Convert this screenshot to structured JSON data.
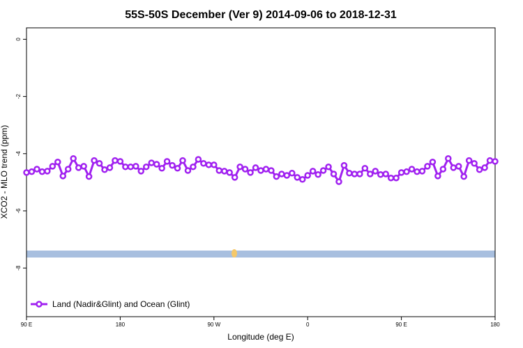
{
  "chart_data": {
    "type": "line",
    "title": "55S-50S December (Ver 9)   2014-09-06 to 2018-12-31",
    "x_label": "Longitude (deg E)",
    "y_label": "XCO2 - MLO trend (ppm)",
    "x": [
      90,
      95,
      100,
      105,
      110,
      115,
      120,
      125,
      130,
      135,
      140,
      145,
      150,
      155,
      160,
      165,
      170,
      175,
      180,
      185,
      190,
      195,
      200,
      205,
      210,
      215,
      220,
      225,
      230,
      235,
      240,
      245,
      250,
      255,
      260,
      265,
      270,
      275,
      280,
      285,
      290,
      295,
      300,
      305,
      310,
      315,
      320,
      325,
      330,
      335,
      340,
      345,
      350,
      355,
      360,
      365,
      370,
      375,
      380,
      385,
      390,
      395,
      400,
      405,
      410,
      415,
      420,
      425,
      430,
      435,
      440,
      445,
      450,
      455,
      460,
      465,
      470,
      475,
      480,
      485,
      490,
      495,
      500,
      505,
      510,
      515,
      520,
      525,
      530,
      535,
      540
    ],
    "series": [
      {
        "name": "Land (Nadir&Glint) and Ocean (Glint)",
        "color": "#a020f0",
        "values": [
          -4.66,
          -4.63,
          -4.54,
          -4.63,
          -4.61,
          -4.44,
          -4.29,
          -4.78,
          -4.54,
          -4.17,
          -4.49,
          -4.44,
          -4.8,
          -4.24,
          -4.34,
          -4.56,
          -4.49,
          -4.24,
          -4.27,
          -4.46,
          -4.46,
          -4.44,
          -4.61,
          -4.46,
          -4.32,
          -4.37,
          -4.51,
          -4.27,
          -4.41,
          -4.51,
          -4.24,
          -4.59,
          -4.46,
          -4.2,
          -4.34,
          -4.39,
          -4.39,
          -4.59,
          -4.61,
          -4.66,
          -4.83,
          -4.46,
          -4.54,
          -4.66,
          -4.49,
          -4.59,
          -4.54,
          -4.59,
          -4.8,
          -4.71,
          -4.76,
          -4.68,
          -4.83,
          -4.9,
          -4.76,
          -4.61,
          -4.73,
          -4.59,
          -4.46,
          -4.71,
          -4.98,
          -4.41,
          -4.68,
          -4.71,
          -4.71,
          -4.51,
          -4.71,
          -4.61,
          -4.73,
          -4.71,
          -4.85,
          -4.85,
          -4.66,
          -4.63,
          -4.54,
          -4.63,
          -4.61,
          -4.44,
          -4.29,
          -4.78,
          -4.54,
          -4.17,
          -4.49,
          -4.44,
          -4.8,
          -4.24,
          -4.34,
          -4.56,
          -4.49,
          -4.24,
          -4.27
        ]
      }
    ],
    "xlim": [
      90,
      540
    ],
    "xticks": [
      {
        "value": 90,
        "label": "90 E"
      },
      {
        "value": 180,
        "label": "180"
      },
      {
        "value": 270,
        "label": "90 W"
      },
      {
        "value": 360,
        "label": "0"
      },
      {
        "value": 450,
        "label": "90 E"
      },
      {
        "value": 540,
        "label": "180"
      }
    ],
    "ylim": [
      -9.7,
      0.4
    ],
    "yticks": [
      0,
      -2,
      -4,
      -6,
      -8
    ],
    "legend": "bottom-left"
  }
}
